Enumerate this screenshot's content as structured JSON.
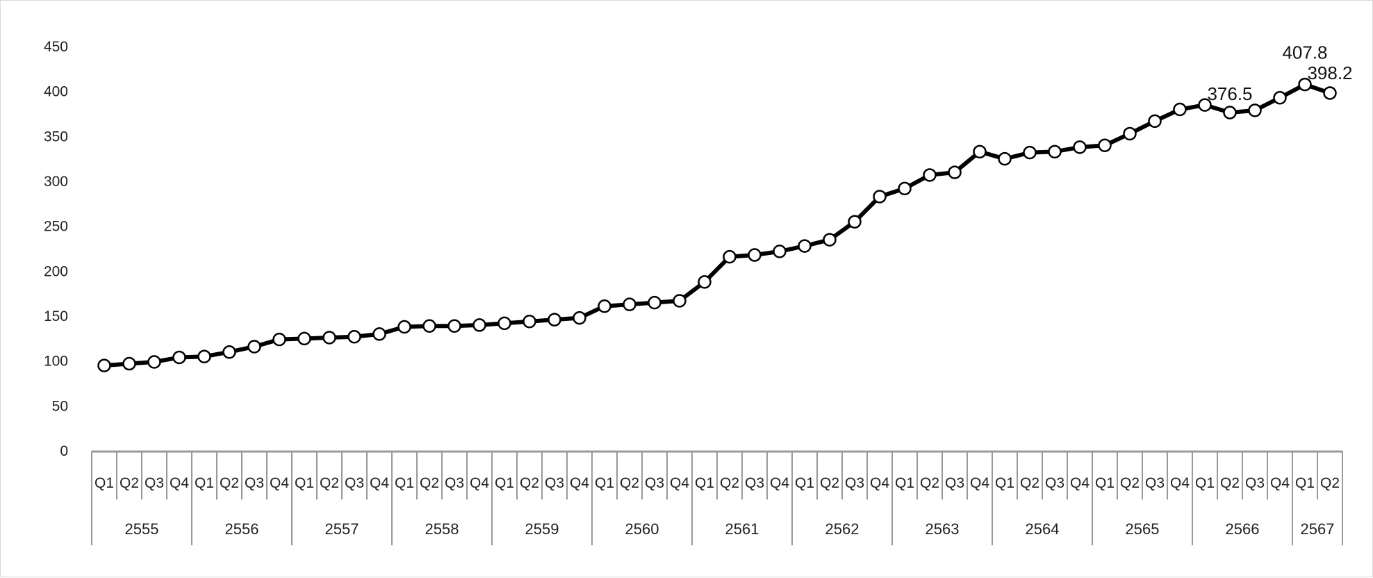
{
  "chart_data": {
    "type": "line",
    "title": "",
    "xlabel": "",
    "ylabel": "",
    "ylim": [
      0,
      450
    ],
    "yticks": [
      0,
      50,
      100,
      150,
      200,
      250,
      300,
      350,
      400,
      450
    ],
    "grid": false,
    "legend": "none",
    "colors": {
      "line": "#000000",
      "marker_fill": "#ffffff",
      "axis": "#999999"
    },
    "years": [
      {
        "label": "2555",
        "quarters": [
          "Q1",
          "Q2",
          "Q3",
          "Q4"
        ]
      },
      {
        "label": "2556",
        "quarters": [
          "Q1",
          "Q2",
          "Q3",
          "Q4"
        ]
      },
      {
        "label": "2557",
        "quarters": [
          "Q1",
          "Q2",
          "Q3",
          "Q4"
        ]
      },
      {
        "label": "2558",
        "quarters": [
          "Q1",
          "Q2",
          "Q3",
          "Q4"
        ]
      },
      {
        "label": "2559",
        "quarters": [
          "Q1",
          "Q2",
          "Q3",
          "Q4"
        ]
      },
      {
        "label": "2560",
        "quarters": [
          "Q1",
          "Q2",
          "Q3",
          "Q4"
        ]
      },
      {
        "label": "2561",
        "quarters": [
          "Q1",
          "Q2",
          "Q3",
          "Q4"
        ]
      },
      {
        "label": "2562",
        "quarters": [
          "Q1",
          "Q2",
          "Q3",
          "Q4"
        ]
      },
      {
        "label": "2563",
        "quarters": [
          "Q1",
          "Q2",
          "Q3",
          "Q4"
        ]
      },
      {
        "label": "2564",
        "quarters": [
          "Q1",
          "Q2",
          "Q3",
          "Q4"
        ]
      },
      {
        "label": "2565",
        "quarters": [
          "Q1",
          "Q2",
          "Q3",
          "Q4"
        ]
      },
      {
        "label": "2566",
        "quarters": [
          "Q1",
          "Q2",
          "Q3",
          "Q4"
        ]
      },
      {
        "label": "2567",
        "quarters": [
          "Q1",
          "Q2"
        ]
      }
    ],
    "values": [
      95,
      97,
      99,
      104,
      105,
      110,
      116,
      124,
      125,
      126,
      127,
      130,
      138,
      139,
      139,
      140,
      142,
      144,
      146,
      148,
      161,
      163,
      165,
      167,
      188,
      216,
      218,
      222,
      228,
      235,
      255,
      283,
      292,
      307,
      310,
      333,
      325,
      332,
      333,
      338,
      340,
      353,
      367,
      380,
      385,
      376.5,
      379,
      393,
      407.8,
      398.2
    ],
    "data_labels": [
      {
        "index": 45,
        "text": "376.5"
      },
      {
        "index": 48,
        "text": "407.8"
      },
      {
        "index": 49,
        "text": "398.2"
      }
    ]
  }
}
